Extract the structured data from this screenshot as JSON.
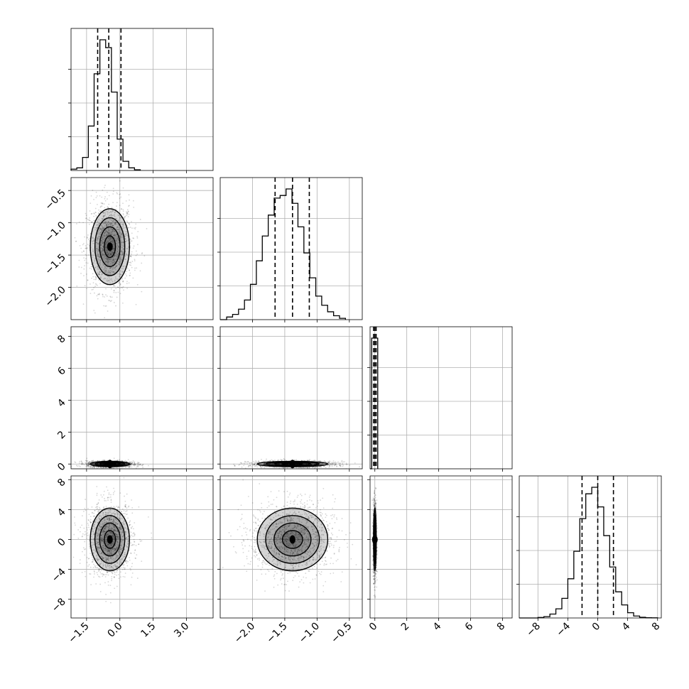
{
  "chart_data": {
    "type": "corner",
    "n_params": 4,
    "parameters": [
      {
        "index": 0,
        "range": [
          -2.2,
          4.2
        ],
        "ticks": [
          -1.5,
          0.0,
          1.5,
          3.0
        ],
        "tick_labels": [
          "−1.5",
          "0.0",
          "1.5",
          "3.0"
        ],
        "quantiles": [
          -1.0,
          -0.5,
          0.05
        ],
        "hist_edges_start": -2.2,
        "hist_bin_width": 0.26,
        "hist_counts": [
          0.01,
          0.02,
          0.1,
          0.34,
          0.74,
          1.0,
          0.94,
          0.6,
          0.24,
          0.07,
          0.02,
          0.005
        ]
      },
      {
        "index": 1,
        "range": [
          -2.5,
          -0.3
        ],
        "ticks": [
          -2.0,
          -1.5,
          -1.0,
          -0.5
        ],
        "tick_labels": [
          "−2.0",
          "−1.5",
          "−1.0",
          "−0.5"
        ],
        "quantiles": [
          -1.65,
          -1.38,
          -1.12
        ],
        "hist_edges_start": -2.4,
        "hist_bin_width": 0.092,
        "hist_counts": [
          0.02,
          0.04,
          0.08,
          0.15,
          0.27,
          0.45,
          0.64,
          0.8,
          0.93,
          0.95,
          1.0,
          0.89,
          0.71,
          0.51,
          0.32,
          0.18,
          0.11,
          0.06,
          0.03,
          0.01
        ]
      },
      {
        "index": 2,
        "range": [
          -0.3,
          8.6
        ],
        "ticks": [
          0,
          2,
          4,
          6,
          8
        ],
        "tick_labels": [
          "0",
          "2",
          "4",
          "6",
          "8"
        ],
        "quantiles": [
          -0.08,
          0.0,
          0.08
        ],
        "hist_edges_start": -0.2,
        "hist_bin_width": 0.38,
        "hist_counts": [
          1.0
        ]
      },
      {
        "index": 3,
        "range": [
          -10.5,
          8.5
        ],
        "ticks": [
          -8,
          -4,
          0,
          4,
          8
        ],
        "tick_labels": [
          "−8",
          "−4",
          "0",
          "4",
          "8"
        ],
        "quantiles": [
          -2.1,
          0.0,
          2.1
        ],
        "hist_edges_start": -8.0,
        "hist_bin_width": 0.8,
        "hist_counts": [
          0.004,
          0.01,
          0.03,
          0.07,
          0.15,
          0.3,
          0.51,
          0.76,
          0.95,
          1.0,
          0.85,
          0.63,
          0.39,
          0.2,
          0.1,
          0.04,
          0.015,
          0.005,
          0.002,
          0.001
        ]
      }
    ],
    "pairs": [
      {
        "row": 1,
        "col": 0,
        "center": [
          -0.45,
          -1.37
        ],
        "sigma": [
          0.42,
          0.28
        ]
      },
      {
        "row": 2,
        "col": 0,
        "center": [
          -0.45,
          0.0
        ],
        "sigma": [
          0.42,
          0.08
        ]
      },
      {
        "row": 2,
        "col": 1,
        "center": [
          -1.38,
          0.0
        ],
        "sigma": [
          0.26,
          0.08
        ]
      },
      {
        "row": 3,
        "col": 0,
        "center": [
          -0.45,
          0.0
        ],
        "sigma": [
          0.42,
          2.0
        ]
      },
      {
        "row": 3,
        "col": 1,
        "center": [
          -1.38,
          0.0
        ],
        "sigma": [
          0.26,
          2.0
        ]
      },
      {
        "row": 3,
        "col": 2,
        "center": [
          0.0,
          0.0
        ],
        "sigma": [
          0.04,
          2.0
        ]
      }
    ],
    "contour_levels_sigma": [
      0.6,
      1.1,
      1.6,
      2.1
    ],
    "scatter_color": "#000000",
    "grid": true,
    "labels": []
  }
}
